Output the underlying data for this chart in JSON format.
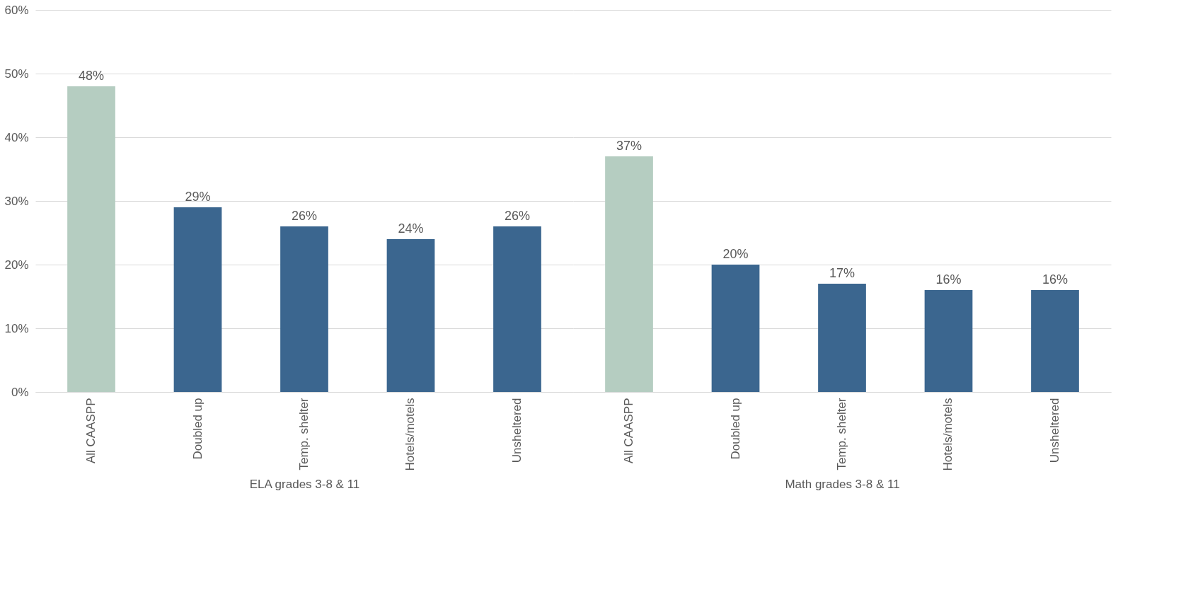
{
  "chart_data": [
    {
      "type": "bar",
      "xlabel": "ELA grades 3-8 & 11",
      "categories": [
        "All CAASPP",
        "Doubled up",
        "Temp. shelter",
        "Hotels/motels",
        "Unsheltered"
      ],
      "values": [
        48,
        29,
        26,
        24,
        26
      ],
      "value_labels": [
        "48%",
        "29%",
        "26%",
        "24%",
        "26%"
      ],
      "colors": [
        "#b5cdc1",
        "#3b668f",
        "#3b668f",
        "#3b668f",
        "#3b668f"
      ],
      "ylim": [
        0,
        60
      ],
      "yticks": [
        {
          "value": 0,
          "label": "0%"
        },
        {
          "value": 10,
          "label": "10%"
        },
        {
          "value": 20,
          "label": "20%"
        },
        {
          "value": 30,
          "label": "30%"
        },
        {
          "value": 40,
          "label": "40%"
        },
        {
          "value": 50,
          "label": "50%"
        },
        {
          "value": 60,
          "label": "60%"
        }
      ],
      "grid": "y"
    },
    {
      "type": "bar",
      "xlabel": "Math grades 3-8 & 11",
      "categories": [
        "All CAASPP",
        "Doubled up",
        "Temp. shelter",
        "Hotels/motels",
        "Unsheltered"
      ],
      "values": [
        37,
        20,
        17,
        16,
        16
      ],
      "value_labels": [
        "37%",
        "20%",
        "17%",
        "16%",
        "16%"
      ],
      "colors": [
        "#b5cdc1",
        "#3b668f",
        "#3b668f",
        "#3b668f",
        "#3b668f"
      ],
      "ylim": [
        0,
        60
      ],
      "yticks": [
        {
          "value": 0,
          "label": null
        },
        {
          "value": 10,
          "label": null
        },
        {
          "value": 20,
          "label": null
        },
        {
          "value": 30,
          "label": null
        },
        {
          "value": 40,
          "label": null
        },
        {
          "value": 50,
          "label": null
        },
        {
          "value": 60,
          "label": null
        }
      ],
      "grid": "y",
      "tick_labels": "x"
    }
  ]
}
